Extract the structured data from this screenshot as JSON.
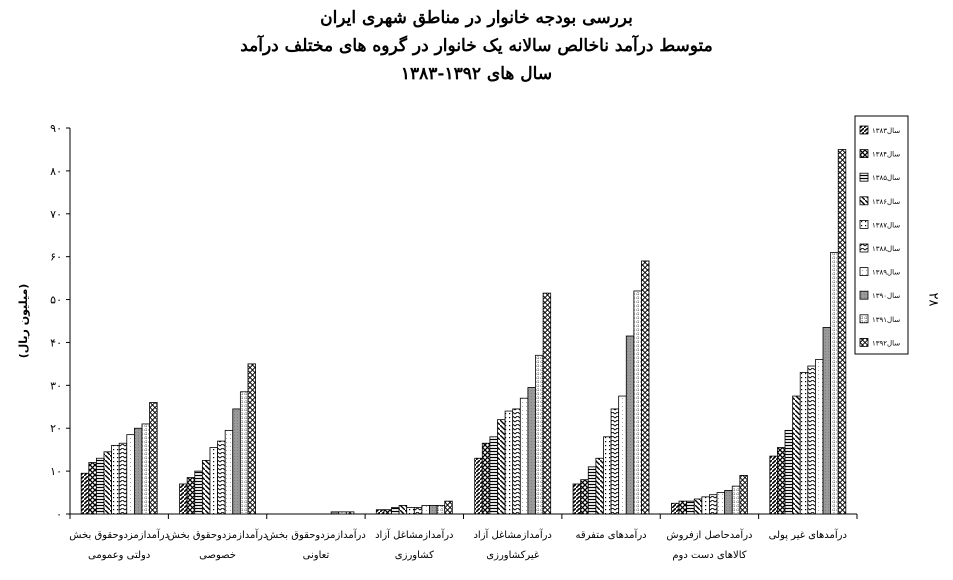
{
  "page": {
    "page_number": "۲۸"
  },
  "chart_data": {
    "type": "bar",
    "title": [
      "بررسی بودجه خانوار در مناطق شهری ایران",
      "متوسط درآمد ناخالص سالانه یک خانوار در گروه های مختلف درآمد",
      "سال های ۱۳۹۲-۱۳۸۳"
    ],
    "ylabel": "(میلیون ریال)",
    "ylim": [
      0,
      90
    ],
    "yticks": [
      "۰",
      "۱۰",
      "۲۰",
      "۳۰",
      "۴۰",
      "۵۰",
      "۶۰",
      "۷۰",
      "۸۰",
      "۹۰"
    ],
    "grid": false,
    "legend_position": "top-right",
    "categories": [
      [
        "درآمدازمزدوحقوق بخش",
        "دولتی وعمومی"
      ],
      [
        "درآمدازمزدوحقوق بخش",
        "خصوصی"
      ],
      [
        "درآمدازمزدوحقوق بخش",
        "تعاونی"
      ],
      [
        "درآمدازمشاغل آزاد",
        "کشاورزی"
      ],
      [
        "درآمدازمشاغل آزاد",
        "غیرکشاورزی"
      ],
      [
        "درآمدهای متفرقه"
      ],
      [
        "درآمدحاصل ازفروش",
        "کالاهای دست دوم"
      ],
      [
        "درآمدهای غیر پولی"
      ]
    ],
    "series": [
      {
        "name": "سال۱۳۸۳",
        "values": [
          9.5,
          7.0,
          0.0,
          1.0,
          13.0,
          7.0,
          2.5,
          13.5
        ]
      },
      {
        "name": "سال۱۳۸۴",
        "values": [
          12.0,
          8.5,
          0.0,
          1.0,
          16.5,
          8.0,
          3.0,
          15.5
        ]
      },
      {
        "name": "سال۱۳۸۵",
        "values": [
          13.0,
          10.0,
          0.0,
          1.5,
          18.0,
          11.0,
          3.0,
          19.5
        ]
      },
      {
        "name": "سال۱۳۸۶",
        "values": [
          14.5,
          12.5,
          0.0,
          2.0,
          22.0,
          13.0,
          3.5,
          27.5
        ]
      },
      {
        "name": "سال۱۳۸۷",
        "values": [
          16.0,
          15.5,
          0.0,
          1.5,
          24.0,
          18.0,
          4.0,
          33.0
        ]
      },
      {
        "name": "سال۱۳۸۸",
        "values": [
          16.5,
          17.0,
          0.0,
          1.5,
          24.5,
          24.5,
          4.5,
          34.5
        ]
      },
      {
        "name": "سال۱۳۸۹",
        "values": [
          18.5,
          19.5,
          0.0,
          2.0,
          27.0,
          27.5,
          5.0,
          36.0
        ]
      },
      {
        "name": "سال۱۳۹۰",
        "values": [
          20.0,
          24.5,
          0.5,
          2.0,
          29.5,
          41.5,
          5.5,
          43.5
        ]
      },
      {
        "name": "سال۱۳۹۱",
        "values": [
          21.0,
          28.5,
          0.5,
          2.0,
          37.0,
          52.0,
          6.5,
          61.0
        ]
      },
      {
        "name": "سال۱۳۹۲",
        "values": [
          26.0,
          35.0,
          0.5,
          3.0,
          51.5,
          59.0,
          9.0,
          85.0
        ]
      }
    ]
  }
}
